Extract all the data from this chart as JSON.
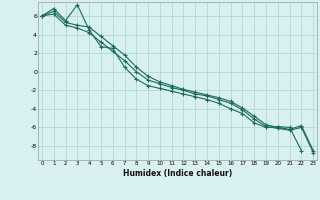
{
  "xlabel": "Humidex (Indice chaleur)",
  "x": [
    0,
    1,
    2,
    3,
    4,
    5,
    6,
    7,
    8,
    9,
    10,
    11,
    12,
    13,
    14,
    15,
    16,
    17,
    18,
    19,
    20,
    21,
    22,
    23
  ],
  "line1": [
    6.0,
    6.8,
    5.5,
    7.2,
    4.5,
    2.7,
    2.5,
    0.5,
    -0.8,
    -1.5,
    -1.8,
    -2.1,
    -2.4,
    -2.7,
    -3.0,
    -3.4,
    -4.0,
    -4.5,
    -5.5,
    -6.0,
    -5.9,
    -6.0,
    -8.5,
    null
  ],
  "line2": [
    6.0,
    6.2,
    5.0,
    4.7,
    4.2,
    3.2,
    2.2,
    1.2,
    0.0,
    -0.9,
    -1.3,
    -1.7,
    -2.0,
    -2.4,
    -2.6,
    -3.0,
    -3.4,
    -4.1,
    -5.1,
    -5.9,
    -6.1,
    -6.3,
    -6.0,
    -8.7
  ],
  "line3": [
    6.0,
    6.5,
    5.3,
    5.0,
    4.8,
    3.8,
    2.8,
    1.8,
    0.5,
    -0.5,
    -1.1,
    -1.5,
    -1.9,
    -2.2,
    -2.5,
    -2.8,
    -3.2,
    -3.9,
    -4.8,
    -5.7,
    -6.0,
    -6.2,
    -5.8,
    -8.5
  ],
  "color": "#1a6b5a",
  "bg_color": "#d8f0f0",
  "grid_color": "#aad4d4",
  "ylim": [
    -9.5,
    7.5
  ],
  "xlim": [
    -0.3,
    23.3
  ],
  "yticks": [
    -8,
    -6,
    -4,
    -2,
    0,
    2,
    4,
    6
  ],
  "xticks": [
    0,
    1,
    2,
    3,
    4,
    5,
    6,
    7,
    8,
    9,
    10,
    11,
    12,
    13,
    14,
    15,
    16,
    17,
    18,
    19,
    20,
    21,
    22,
    23
  ]
}
